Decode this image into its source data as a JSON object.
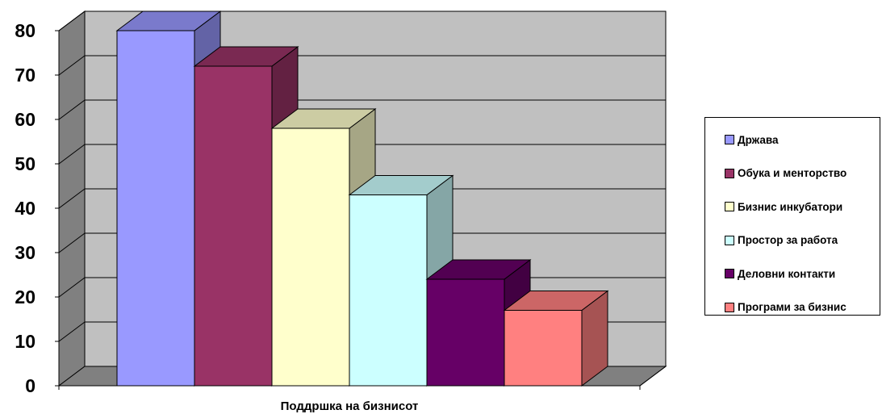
{
  "chart_data": {
    "type": "bar",
    "title": "",
    "xlabel": "Поддршка на бизнисот",
    "ylabel": "",
    "ylim": [
      0,
      80
    ],
    "yticks": [
      "0",
      "10",
      "20",
      "30",
      "40",
      "50",
      "60",
      "70",
      "80"
    ],
    "categories": [
      "Поддршка на бизнисот"
    ],
    "grid": true,
    "legend_position": "right",
    "series": [
      {
        "name": "Држава",
        "values": [
          80
        ],
        "color": "#9999ff"
      },
      {
        "name": "Обука и менторство",
        "values": [
          72
        ],
        "color": "#993366"
      },
      {
        "name": "Бизнис инкубатори",
        "values": [
          58
        ],
        "color": "#ffffcc"
      },
      {
        "name": "Простор за работа",
        "values": [
          43
        ],
        "color": "#ccffff"
      },
      {
        "name": "Деловни контакти",
        "values": [
          24
        ],
        "color": "#660066"
      },
      {
        "name": "Програми за бизнис",
        "values": [
          17
        ],
        "color": "#ff8080"
      }
    ]
  }
}
